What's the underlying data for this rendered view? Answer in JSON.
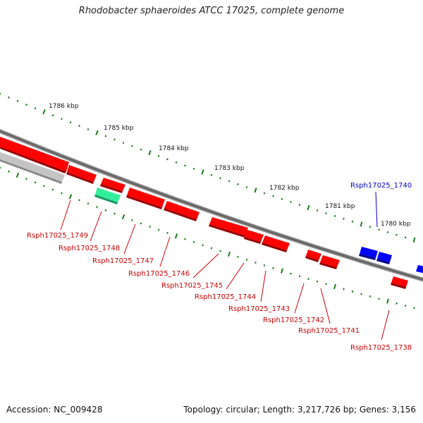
{
  "title": "Rhodobacter sphaeroides ATCC 17025, complete genome",
  "footer": {
    "accession": "Accession: NC_009428",
    "summary": "Topology: circular; Length: 3,217,726 bp; Genes: 3,156"
  },
  "ticks": [
    "1786 kbp",
    "1785 kbp",
    "1784 kbp",
    "1783 kbp",
    "1782 kbp",
    "1781 kbp",
    "1780 kbp"
  ],
  "colors": {
    "forward_gene": "#ff0000",
    "reverse_gene": "#0000ff",
    "other_gene": "#33ee99",
    "pseudo_gene": "#bbbbbb",
    "backbone": "#777777",
    "tick": "#1a7a1a",
    "label_red": "#cc0000",
    "label_blue": "#0000cc"
  },
  "gene_labels": [
    "Rsph17025_1749",
    "Rsph17025_1748",
    "Rsph17025_1747",
    "Rsph17025_1746",
    "Rsph17025_1745",
    "Rsph17025_1744",
    "Rsph17025_1743",
    "Rsph17025_1742",
    "Rsph17025_1741",
    "Rsph17025_1738",
    "Rsph17025_1740"
  ]
}
